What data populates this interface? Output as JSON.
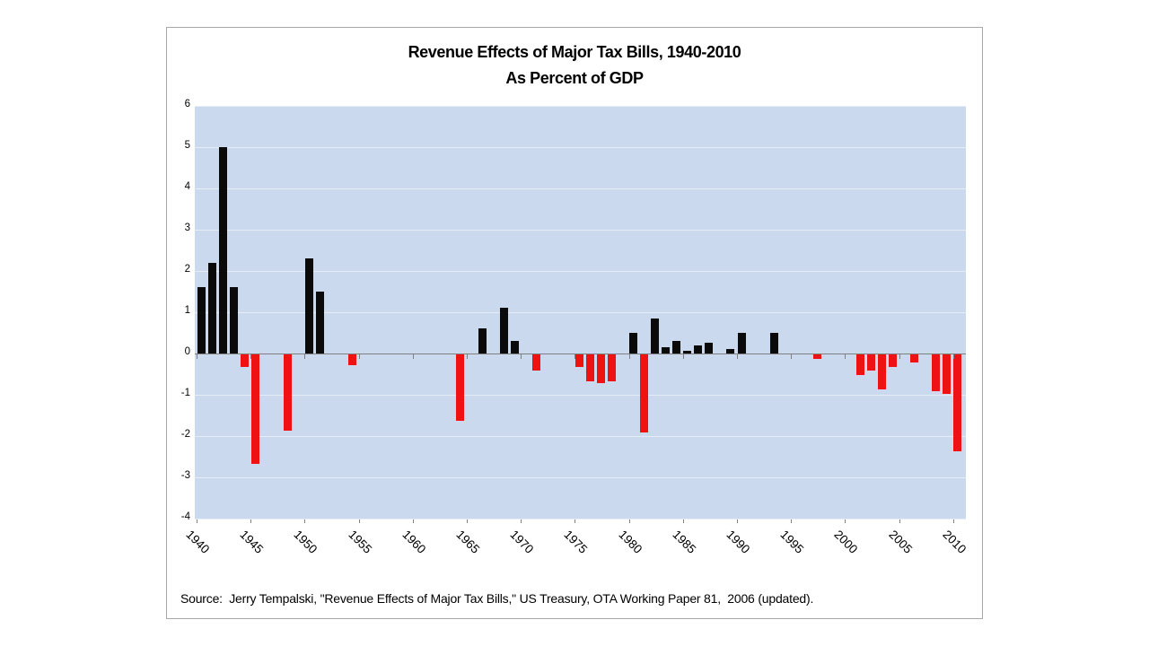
{
  "title": {
    "line1": "Revenue Effects of Major Tax Bills, 1940-2010",
    "line2": "As Percent of GDP"
  },
  "source": "Source:  Jerry Tempalski, \"Revenue Effects of Major Tax Bills,\" US Treasury, OTA Working Paper 81,  2006 (updated).",
  "chart_data": {
    "type": "bar",
    "title": "Revenue Effects of Major Tax Bills, 1940-2010",
    "subtitle": "As Percent of GDP",
    "xlabel": "",
    "ylabel": "",
    "ylim": [
      -4,
      6
    ],
    "yticks": [
      6,
      5,
      4,
      3,
      2,
      1,
      0,
      -1,
      -2,
      -3,
      -4
    ],
    "xticks": [
      1940,
      1945,
      1950,
      1955,
      1960,
      1965,
      1970,
      1975,
      1980,
      1985,
      1990,
      1995,
      2000,
      2005,
      2010
    ],
    "xrange": [
      1940,
      2010
    ],
    "grid": true,
    "legend": "none",
    "colors": {
      "plot_bg": "#cbd9ee",
      "gridline": "#e6edf7",
      "axis": "#7f7f7f",
      "positive_bar": "#0a0a0a",
      "negative_bar": "#ee1212"
    },
    "points": [
      {
        "year": 1940,
        "value": 1.6
      },
      {
        "year": 1941,
        "value": 2.2
      },
      {
        "year": 1942,
        "value": 5.0
      },
      {
        "year": 1943,
        "value": 1.6
      },
      {
        "year": 1944,
        "value": -0.3
      },
      {
        "year": 1945,
        "value": -2.65
      },
      {
        "year": 1948,
        "value": -1.85
      },
      {
        "year": 1950,
        "value": 2.3
      },
      {
        "year": 1951,
        "value": 1.5
      },
      {
        "year": 1954,
        "value": -0.25
      },
      {
        "year": 1964,
        "value": -1.6
      },
      {
        "year": 1966,
        "value": 0.6
      },
      {
        "year": 1968,
        "value": 1.1
      },
      {
        "year": 1969,
        "value": 0.3
      },
      {
        "year": 1971,
        "value": -0.4
      },
      {
        "year": 1975,
        "value": -0.3
      },
      {
        "year": 1976,
        "value": -0.65
      },
      {
        "year": 1977,
        "value": -0.7
      },
      {
        "year": 1978,
        "value": -0.65
      },
      {
        "year": 1980,
        "value": 0.5
      },
      {
        "year": 1981,
        "value": -1.9
      },
      {
        "year": 1982,
        "value": 0.85
      },
      {
        "year": 1983,
        "value": 0.15
      },
      {
        "year": 1984,
        "value": 0.3
      },
      {
        "year": 1985,
        "value": 0.07
      },
      {
        "year": 1986,
        "value": 0.2
      },
      {
        "year": 1987,
        "value": 0.25
      },
      {
        "year": 1989,
        "value": 0.1
      },
      {
        "year": 1990,
        "value": 0.5
      },
      {
        "year": 1993,
        "value": 0.5
      },
      {
        "year": 1997,
        "value": -0.1
      },
      {
        "year": 2001,
        "value": -0.5
      },
      {
        "year": 2002,
        "value": -0.4
      },
      {
        "year": 2003,
        "value": -0.85
      },
      {
        "year": 2004,
        "value": -0.3
      },
      {
        "year": 2006,
        "value": -0.2
      },
      {
        "year": 2008,
        "value": -0.9
      },
      {
        "year": 2009,
        "value": -0.95
      },
      {
        "year": 2010,
        "value": -2.35
      }
    ]
  }
}
